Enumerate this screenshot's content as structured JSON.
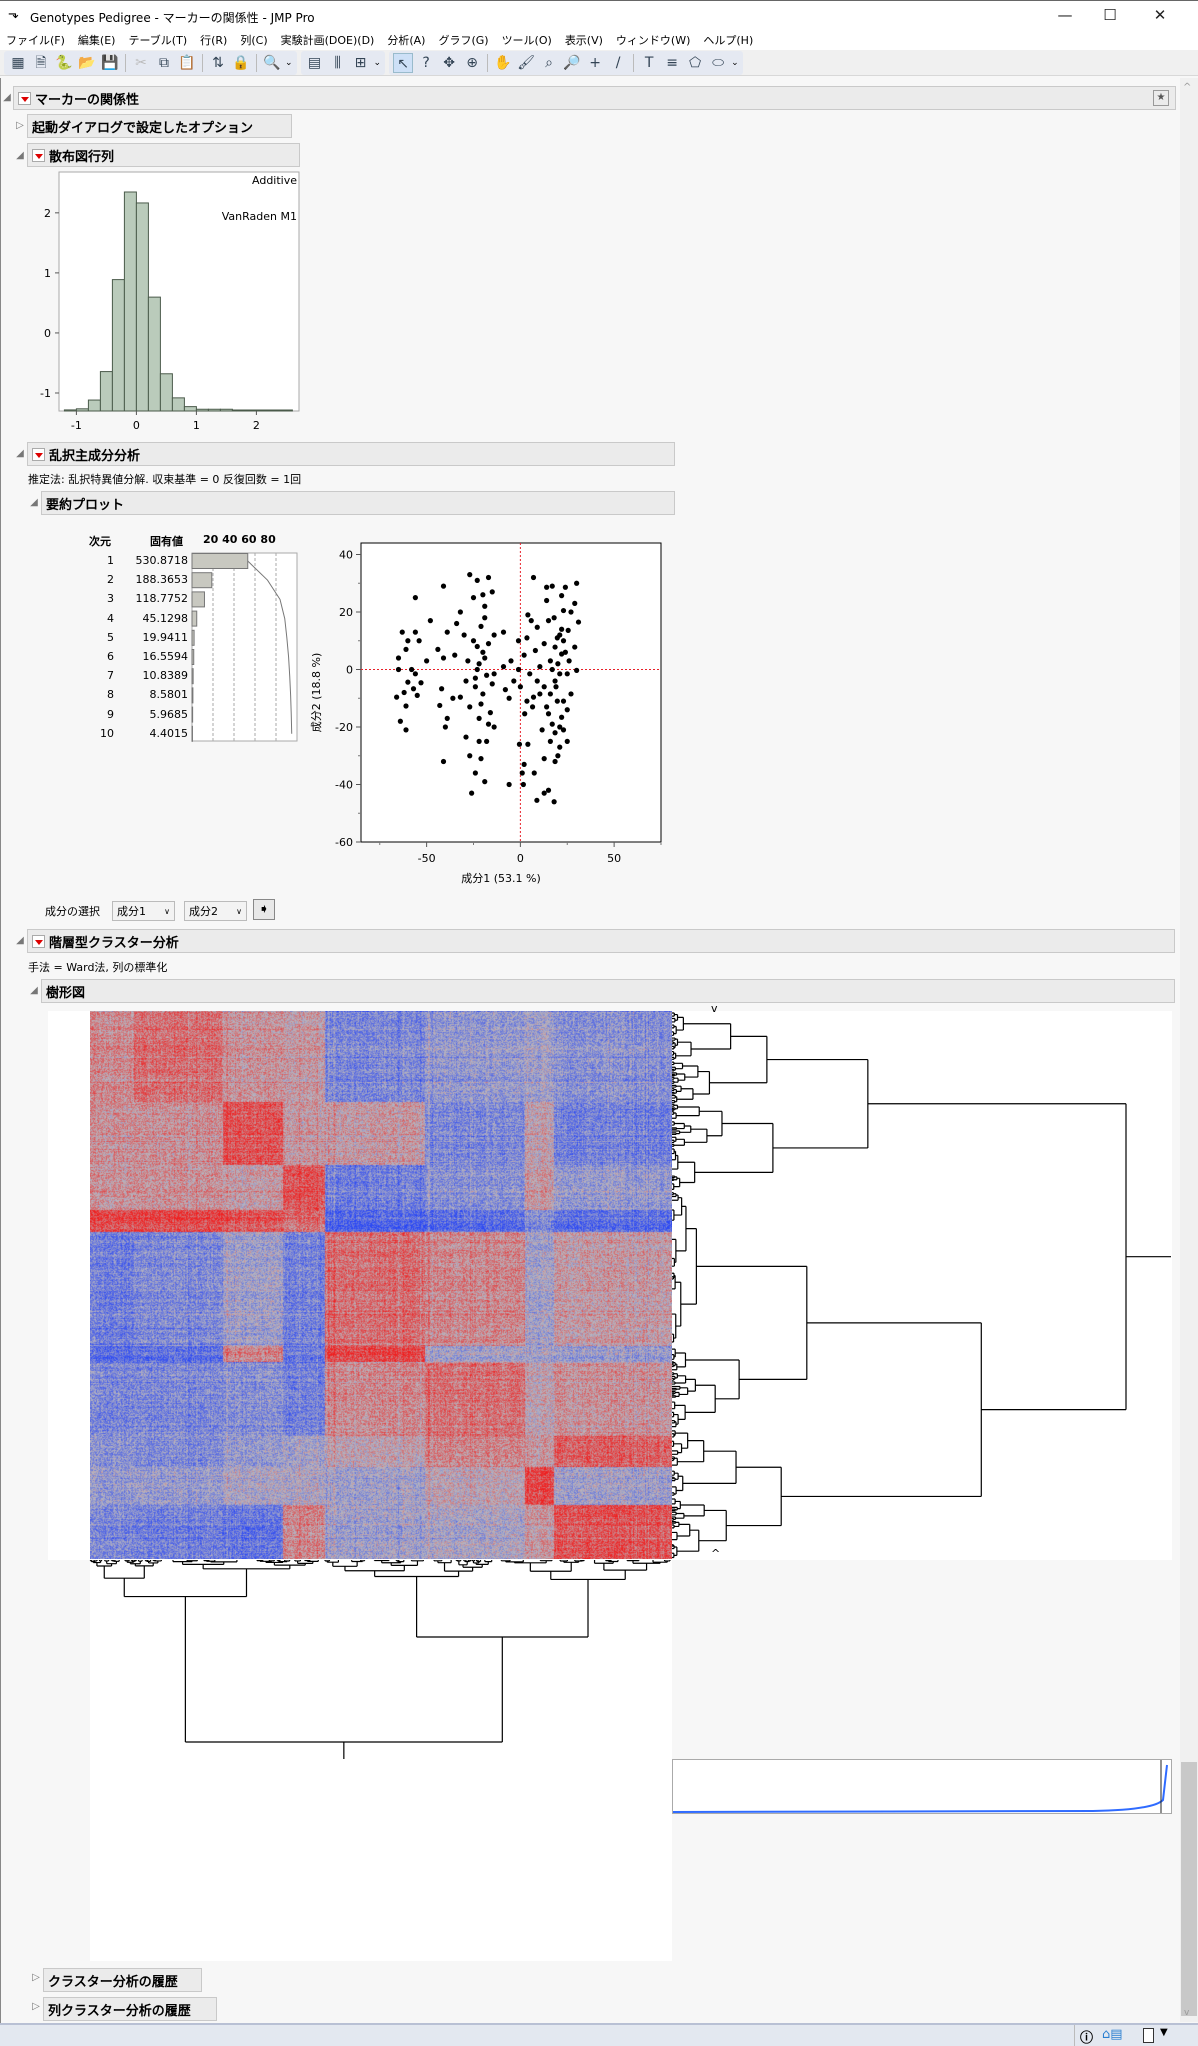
{
  "window": {
    "title": "Genotypes Pedigree - マーカーの関係性 - JMP Pro",
    "app_icon": "jmp-icon",
    "minimize": "—",
    "maximize": "☐",
    "close": "✕"
  },
  "menu": [
    "ファイル(F)",
    "編集(E)",
    "テーブル(T)",
    "行(R)",
    "列(C)",
    "実験計画(DOE)(D)",
    "分析(A)",
    "グラフ(G)",
    "ツール(O)",
    "表示(V)",
    "ウィンドウ(W)",
    "ヘルプ(H)"
  ],
  "toolbar": {
    "groups": [
      [
        {
          "icon": "new-data-table-icon",
          "glyph": "▦"
        },
        {
          "icon": "new-script-icon",
          "glyph": "🗎"
        },
        {
          "icon": "python-icon",
          "glyph": "🐍"
        },
        {
          "icon": "open-icon",
          "glyph": "📂"
        },
        {
          "icon": "save-icon",
          "glyph": "💾"
        },
        {
          "sep": true
        },
        {
          "icon": "cut-icon",
          "glyph": "✂",
          "disabled": true
        },
        {
          "icon": "copy-icon",
          "glyph": "⧉"
        },
        {
          "icon": "paste-icon",
          "glyph": "📋"
        },
        {
          "sep": true
        },
        {
          "icon": "journal-icon",
          "glyph": "⇅"
        },
        {
          "icon": "lock-icon",
          "glyph": "🔒",
          "disabled": true
        },
        {
          "sep": true
        },
        {
          "icon": "search-icon",
          "glyph": "🔍"
        }
      ],
      [
        {
          "icon": "data-table-icon",
          "glyph": "▤"
        },
        {
          "icon": "columns-icon",
          "glyph": "⫼"
        },
        {
          "icon": "add-table-icon",
          "glyph": "⊞"
        }
      ],
      [
        {
          "icon": "arrow-tool-icon",
          "glyph": "↖",
          "selected": true
        },
        {
          "icon": "help-tool-icon",
          "glyph": "?"
        },
        {
          "icon": "selection-tool-icon",
          "glyph": "✥"
        },
        {
          "icon": "crosshair-circle-icon",
          "glyph": "⊕"
        },
        {
          "sep": true
        },
        {
          "icon": "hand-tool-icon",
          "glyph": "✋"
        },
        {
          "icon": "brush-tool-icon",
          "glyph": "🖌"
        },
        {
          "icon": "lasso-tool-icon",
          "glyph": "⌕"
        },
        {
          "icon": "zoom-tool-icon",
          "glyph": "🔎"
        },
        {
          "icon": "crosshair-icon",
          "glyph": "+"
        },
        {
          "icon": "line-tool-icon",
          "glyph": "/"
        },
        {
          "sep": true
        },
        {
          "icon": "text-annotation-icon",
          "glyph": "T"
        },
        {
          "icon": "line-annotation-icon",
          "glyph": "≡"
        },
        {
          "icon": "polygon-icon",
          "glyph": "⬠"
        },
        {
          "icon": "ellipse-icon",
          "glyph": "⬭"
        }
      ]
    ]
  },
  "report": {
    "title": "マーカーの関係性",
    "launch_options": "起動ダイアログで設定したオプション",
    "scatter_matrix": {
      "title": "散布図行列",
      "label_top": "Additive",
      "label_sub": "VanRaden M1",
      "chart_data": {
        "type": "bar",
        "bin_edges": [
          -1.2,
          -1.0,
          -0.8,
          -0.6,
          -0.4,
          -0.2,
          0.0,
          0.2,
          0.4,
          0.6,
          0.8,
          1.0,
          1.2,
          1.4,
          1.6,
          1.8,
          2.0,
          2.2,
          2.4,
          2.6
        ],
        "relative_heights": [
          0.005,
          0.01,
          0.05,
          0.18,
          0.6,
          1.0,
          0.95,
          0.52,
          0.17,
          0.06,
          0.02,
          0.008,
          0.008,
          0.008,
          0.002,
          0.002,
          0.002,
          0.002,
          0.002
        ],
        "xticks": [
          "-1",
          "0",
          "1",
          "2"
        ],
        "yticks": [
          "2",
          "1",
          "0",
          "-1"
        ],
        "xlim": [
          -1.29,
          2.71
        ],
        "ylim": [
          -1.3,
          2.68
        ],
        "bar_color": "#bacbbb"
      }
    },
    "pca": {
      "title": "乱択主成分分析",
      "method_text": "推定法: 乱択特異値分解.  収束基準 = 0 反復回数 = 1回",
      "summary_title": "要約プロット",
      "table_headers": {
        "dim": "次元",
        "eigen": "固有値",
        "scale": "20 40 60 80"
      },
      "eigenvalues": [
        {
          "dim": "1",
          "value": "530.8718"
        },
        {
          "dim": "2",
          "value": "188.3653"
        },
        {
          "dim": "3",
          "value": "118.7752"
        },
        {
          "dim": "4",
          "value": "45.1298"
        },
        {
          "dim": "5",
          "value": "19.9411"
        },
        {
          "dim": "6",
          "value": "16.5594"
        },
        {
          "dim": "7",
          "value": "10.8389"
        },
        {
          "dim": "8",
          "value": "8.5801"
        },
        {
          "dim": "9",
          "value": "5.9685"
        },
        {
          "dim": "10",
          "value": "4.4015"
        }
      ],
      "scatter": {
        "chart_data": {
          "type": "scatter",
          "xlabel": "成分1  (53.1 %)",
          "ylabel": "成分2  (18.8 %)",
          "x_percent": 53.1,
          "xlim": [
            -85,
            75
          ],
          "ylim": [
            -60,
            44
          ],
          "xticks": [
            "-50",
            "0",
            "50"
          ],
          "yticks": [
            "40",
            "20",
            "0",
            "-20",
            "-40",
            "-60"
          ],
          "reference_lines": {
            "x": 0,
            "y": 0,
            "color": "#e8202a"
          },
          "points": [
            [
              -56,
              25
            ],
            [
              -41,
              29
            ],
            [
              -48,
              17
            ],
            [
              -63,
              13
            ],
            [
              -56,
              13
            ],
            [
              -60,
              10
            ],
            [
              -54,
              10
            ],
            [
              -61,
              7
            ],
            [
              -65,
              4
            ],
            [
              -50,
              3
            ],
            [
              -65,
              0
            ],
            [
              -58,
              0
            ],
            [
              -56,
              -1.5
            ],
            [
              -60,
              -4.4
            ],
            [
              -53,
              -4.6
            ],
            [
              -57,
              -6.7
            ],
            [
              -62,
              -8
            ],
            [
              -55,
              -9
            ],
            [
              -66,
              -9.6
            ],
            [
              -61,
              -12.7
            ],
            [
              -64,
              -18
            ],
            [
              -61,
              -21
            ],
            [
              -44,
              7
            ],
            [
              -41,
              4
            ],
            [
              -42,
              -6.7
            ],
            [
              -43,
              -12.5
            ],
            [
              -36,
              -10
            ],
            [
              -40,
              -20
            ],
            [
              -41,
              -32
            ],
            [
              -39,
              -17
            ],
            [
              -39,
              13
            ],
            [
              -34,
              16
            ],
            [
              -32,
              20
            ],
            [
              -27,
              33
            ],
            [
              -23,
              31
            ],
            [
              -17,
              32
            ],
            [
              -25,
              25
            ],
            [
              -20,
              26
            ],
            [
              -19,
              22
            ],
            [
              -15,
              27
            ],
            [
              -30,
              12
            ],
            [
              -25,
              10
            ],
            [
              -21,
              15
            ],
            [
              -14,
              12
            ],
            [
              -9,
              13
            ],
            [
              -35,
              5
            ],
            [
              -28,
              3
            ],
            [
              -23,
              0
            ],
            [
              -19,
              4
            ],
            [
              -14,
              -1.5
            ],
            [
              -9,
              1
            ],
            [
              -5,
              3
            ],
            [
              -29,
              -4
            ],
            [
              -24,
              -6
            ],
            [
              -20,
              -8.5
            ],
            [
              -15,
              -5
            ],
            [
              -8,
              -7
            ],
            [
              -32,
              -9.6
            ],
            [
              -27,
              -13
            ],
            [
              -22,
              -17
            ],
            [
              -17,
              -19
            ],
            [
              -14,
              -20
            ],
            [
              -29,
              -23.5
            ],
            [
              -22,
              -25
            ],
            [
              -27,
              -30
            ],
            [
              -21,
              -31
            ],
            [
              -24,
              -36
            ],
            [
              -26,
              -43
            ],
            [
              -19,
              -39
            ],
            [
              -6,
              -40
            ],
            [
              -3.5,
              -4
            ],
            [
              -6,
              -10
            ],
            [
              -1,
              10
            ],
            [
              4,
              19
            ],
            [
              7,
              32
            ],
            [
              2,
              5
            ],
            [
              5,
              -1.5
            ],
            [
              9,
              -4
            ],
            [
              3.5,
              -11
            ],
            [
              6.5,
              -13
            ],
            [
              -0.5,
              -26
            ],
            [
              4,
              -26
            ],
            [
              2,
              -33
            ],
            [
              1,
              -36
            ],
            [
              7.4,
              -36
            ],
            [
              1.6,
              -40
            ],
            [
              8.8,
              -45.5
            ],
            [
              12.7,
              -43
            ],
            [
              18,
              -46
            ],
            [
              15,
              -42
            ],
            [
              12.7,
              -31
            ],
            [
              18.5,
              -32
            ],
            [
              11.6,
              -21
            ],
            [
              16,
              -25
            ],
            [
              21,
              -27
            ],
            [
              25,
              -25
            ],
            [
              17,
              -19
            ],
            [
              22,
              -16.6
            ],
            [
              14,
              -13
            ],
            [
              23,
              -11
            ],
            [
              27,
              -8.5
            ],
            [
              12.7,
              -6
            ],
            [
              18.5,
              -4
            ],
            [
              25,
              -1.5
            ],
            [
              30,
              -0.3
            ],
            [
              10.4,
              1
            ],
            [
              16,
              3
            ],
            [
              22,
              5.4
            ],
            [
              29,
              7.8
            ],
            [
              12.7,
              9
            ],
            [
              19.7,
              11
            ],
            [
              25.5,
              13.6
            ],
            [
              31,
              16.5
            ],
            [
              9,
              14.7
            ],
            [
              15,
              17
            ],
            [
              23,
              20.5
            ],
            [
              29,
              23
            ],
            [
              14,
              28.6
            ],
            [
              17,
              29
            ],
            [
              24,
              28.6
            ],
            [
              30,
              30
            ],
            [
              22,
              25.7
            ],
            [
              14,
              24
            ],
            [
              5.8,
              17
            ],
            [
              3.5,
              11
            ],
            [
              8,
              6.6
            ],
            [
              18.5,
              7.8
            ],
            [
              23,
              10
            ],
            [
              17,
              0
            ],
            [
              21,
              -1.5
            ],
            [
              16,
              -8.5
            ],
            [
              19.7,
              -11
            ],
            [
              15,
              -15.4
            ],
            [
              21,
              -20
            ],
            [
              18.5,
              -22
            ],
            [
              23,
              -21
            ],
            [
              10.4,
              -8.5
            ],
            [
              7,
              -9.6
            ],
            [
              2.3,
              -15.4
            ],
            [
              0,
              -6
            ],
            [
              -1,
              0
            ],
            [
              -22,
              2
            ],
            [
              -18,
              -2
            ],
            [
              -20,
              6
            ],
            [
              -24,
              -3
            ],
            [
              -17,
              9
            ],
            [
              -21,
              -12
            ],
            [
              -19,
              18
            ],
            [
              -16,
              -15
            ],
            [
              -23,
              8
            ],
            [
              -18,
              -25
            ],
            [
              20,
              2
            ],
            [
              24,
              6
            ],
            [
              19,
              -6
            ],
            [
              26,
              3
            ],
            [
              21,
              12
            ],
            [
              18,
              18
            ],
            [
              25,
              -14
            ],
            [
              20,
              -30
            ],
            [
              22,
              14
            ],
            [
              27,
              20
            ]
          ]
        }
      },
      "component_select_label": "成分の選択",
      "component_x": "成分1",
      "component_y": "成分2"
    },
    "cluster": {
      "title": "階層型クラスター分析",
      "method_text": "手法 = Ward法, 列の標準化",
      "dendrogram_title": "樹形図",
      "heatmap_colors": {
        "positive": "#f01e1e",
        "neutral": "#b9b6be",
        "negative": "#2846f5"
      },
      "history": "クラスター分析の履歴",
      "column_history": "列クラスター分析の履歴"
    }
  },
  "statusbar": {
    "icons": [
      "info-icon",
      "home-icon",
      "window-list-icon"
    ]
  }
}
